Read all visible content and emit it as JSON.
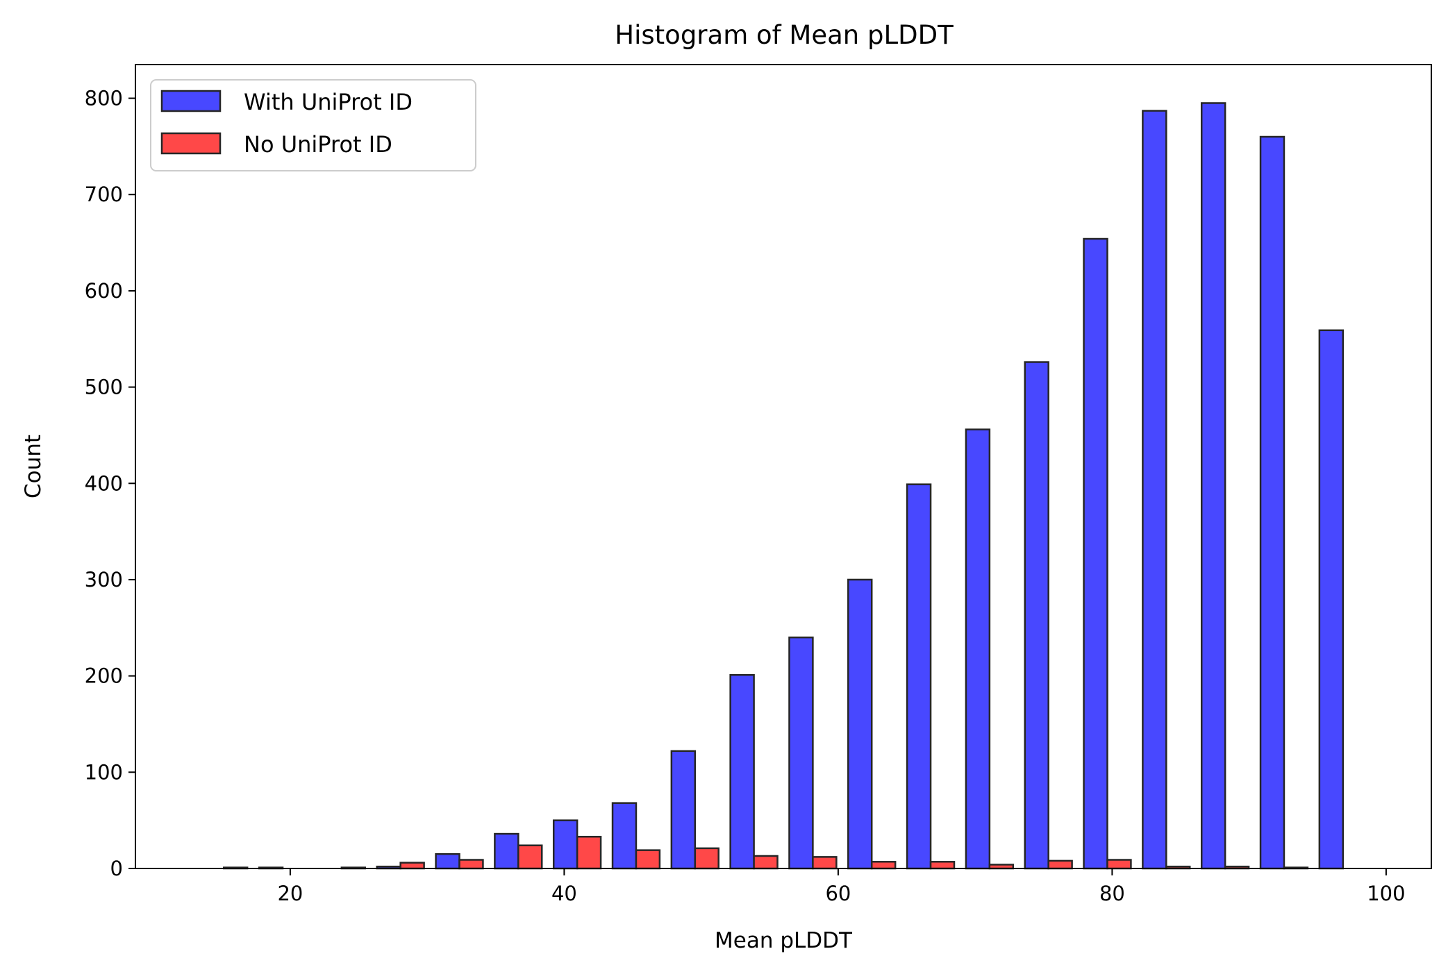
{
  "chart_data": {
    "type": "bar",
    "title": "Histogram of Mean pLDDT",
    "xlabel": "Mean pLDDT",
    "ylabel": "Count",
    "bin_edges": [
      13.0,
      17.3,
      21.6,
      25.9,
      30.2,
      34.5,
      38.8,
      43.1,
      47.4,
      51.7,
      56.0,
      60.3,
      64.6,
      68.9,
      73.2,
      77.5,
      81.8,
      86.1,
      90.4,
      94.7,
      99.0
    ],
    "series": [
      {
        "name": "With UniProt ID",
        "color": "#4848FF",
        "values": [
          0,
          1,
          0,
          2,
          15,
          36,
          50,
          68,
          122,
          201,
          240,
          300,
          399,
          456,
          526,
          654,
          787,
          795,
          760,
          559
        ]
      },
      {
        "name": "No UniProt ID",
        "color": "#FF4848",
        "values": [
          1,
          0,
          1,
          6,
          9,
          24,
          33,
          19,
          21,
          13,
          12,
          7,
          7,
          4,
          8,
          9,
          2,
          2,
          1,
          0
        ]
      }
    ],
    "xlim": [
      8.7,
      103.3
    ],
    "ylim": [
      0,
      835
    ],
    "xticks": [
      20,
      40,
      60,
      80,
      100
    ],
    "yticks": [
      0,
      100,
      200,
      300,
      400,
      500,
      600,
      700,
      800
    ],
    "grid": false,
    "legend_position": "upper-left"
  }
}
